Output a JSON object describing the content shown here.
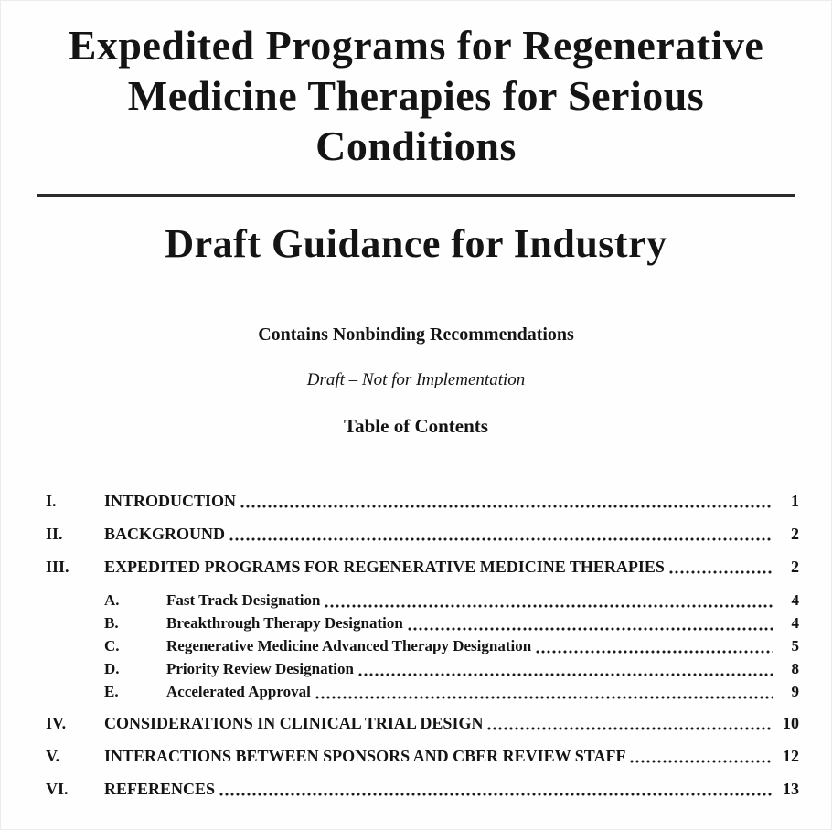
{
  "document": {
    "title": "Expedited Programs for Regenerative Medicine Therapies for Serious Conditions",
    "subtitle": "Draft Guidance for Industry",
    "notice_bold": "Contains Nonbinding Recommendations",
    "notice_italic": "Draft – Not for Implementation",
    "toc_title": "Table of Contents",
    "toc": [
      {
        "num": "I.",
        "label": "INTRODUCTION",
        "page": "1",
        "level": 1
      },
      {
        "num": "II.",
        "label": "BACKGROUND",
        "page": "2",
        "level": 1
      },
      {
        "num": "III.",
        "label": "EXPEDITED PROGRAMS FOR REGENERATIVE MEDICINE THERAPIES",
        "page": "2",
        "level": 1
      },
      {
        "num": "A.",
        "label": "Fast Track Designation",
        "page": "4",
        "level": 2
      },
      {
        "num": "B.",
        "label": "Breakthrough Therapy Designation",
        "page": "4",
        "level": 2
      },
      {
        "num": "C.",
        "label": "Regenerative Medicine Advanced Therapy Designation",
        "page": "5",
        "level": 2
      },
      {
        "num": "D.",
        "label": "Priority Review Designation",
        "page": "8",
        "level": 2
      },
      {
        "num": "E.",
        "label": "Accelerated Approval",
        "page": "9",
        "level": 2
      },
      {
        "num": "IV.",
        "label": "CONSIDERATIONS IN CLINICAL TRIAL DESIGN",
        "page": "10",
        "level": 1
      },
      {
        "num": "V.",
        "label": "INTERACTIONS BETWEEN SPONSORS AND CBER REVIEW STAFF",
        "page": "12",
        "level": 1
      },
      {
        "num": "VI.",
        "label": "REFERENCES",
        "page": "13",
        "level": 1
      }
    ],
    "colors": {
      "text": "#141414",
      "rule": "#2b2b2b",
      "background": "#fefefe"
    }
  }
}
